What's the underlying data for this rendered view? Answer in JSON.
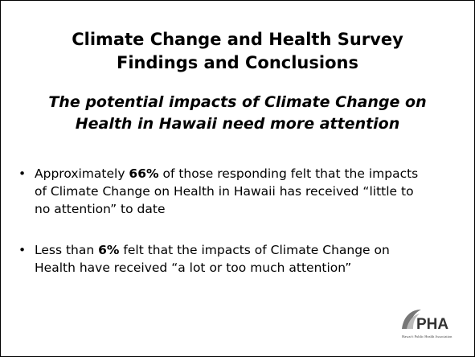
{
  "slide": {
    "title": [
      "Climate Change and Health Survey",
      "Findings and Conclusions"
    ],
    "subtitle": [
      "The potential impacts of Climate Change on",
      "Health in Hawaii need more attention"
    ],
    "bullets": [
      [
        {
          "text": "Approximately ",
          "bold": false
        },
        {
          "text": "66%",
          "bold": true
        },
        {
          "text": " of those responding felt that the impacts of Climate Change on Health in Hawaii has received “little to no attention” to date",
          "bold": false
        }
      ],
      [
        {
          "text": "Less than ",
          "bold": false
        },
        {
          "text": "6%",
          "bold": true
        },
        {
          "text": " felt that the impacts of Climate Change on Health have received “a lot or too much attention”",
          "bold": false
        }
      ]
    ],
    "logo": {
      "text": "PHA",
      "caption": "Hawai‘i Public Health Association"
    }
  }
}
